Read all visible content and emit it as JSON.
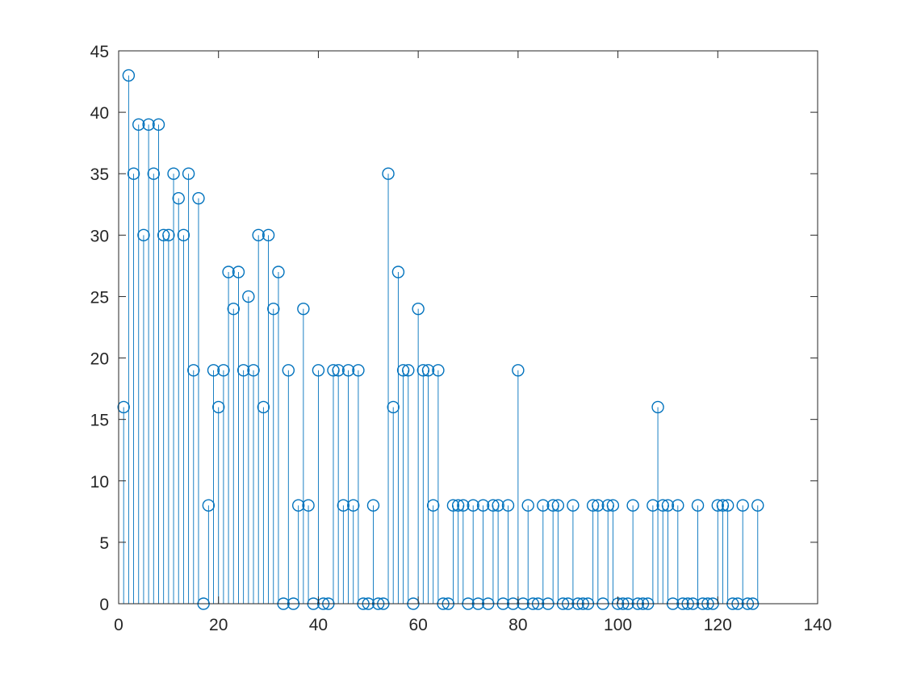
{
  "chart_data": {
    "type": "stem",
    "title": "",
    "xlabel": "",
    "ylabel": "",
    "xlim": [
      0,
      140
    ],
    "ylim": [
      0,
      45
    ],
    "xticks": [
      0,
      20,
      40,
      60,
      80,
      100,
      120,
      140
    ],
    "yticks": [
      0,
      5,
      10,
      15,
      20,
      25,
      30,
      35,
      40,
      45
    ],
    "grid": false,
    "box": true,
    "marker": "circle",
    "color": "#0072BD",
    "x": [
      1,
      2,
      3,
      4,
      5,
      6,
      7,
      8,
      9,
      10,
      11,
      12,
      13,
      14,
      15,
      16,
      17,
      18,
      19,
      20,
      21,
      22,
      23,
      24,
      25,
      26,
      27,
      28,
      29,
      30,
      31,
      32,
      33,
      34,
      35,
      36,
      37,
      38,
      39,
      40,
      41,
      42,
      43,
      44,
      45,
      46,
      47,
      48,
      49,
      50,
      51,
      52,
      53,
      54,
      55,
      56,
      57,
      58,
      59,
      60,
      61,
      62,
      63,
      64,
      65,
      66,
      67,
      68,
      69,
      70,
      71,
      72,
      73,
      74,
      75,
      76,
      77,
      78,
      79,
      80,
      81,
      82,
      83,
      84,
      85,
      86,
      87,
      88,
      89,
      90,
      91,
      92,
      93,
      94,
      95,
      96,
      97,
      98,
      99,
      100,
      101,
      102,
      103,
      104,
      105,
      106,
      107,
      108,
      109,
      110,
      111,
      112,
      113,
      114,
      115,
      116,
      117,
      118,
      119,
      120,
      121,
      122,
      123,
      124,
      125,
      126,
      127,
      128
    ],
    "values": [
      16,
      43,
      35,
      39,
      30,
      39,
      35,
      39,
      30,
      30,
      35,
      33,
      30,
      35,
      19,
      33,
      0,
      8,
      19,
      16,
      19,
      27,
      24,
      27,
      19,
      25,
      19,
      30,
      16,
      30,
      24,
      27,
      0,
      19,
      0,
      8,
      24,
      8,
      0,
      19,
      0,
      0,
      19,
      19,
      8,
      19,
      8,
      19,
      0,
      0,
      8,
      0,
      0,
      35,
      16,
      27,
      19,
      19,
      0,
      24,
      19,
      19,
      8,
      19,
      0,
      0,
      8,
      8,
      8,
      0,
      8,
      0,
      8,
      0,
      8,
      8,
      0,
      8,
      0,
      19,
      0,
      8,
      0,
      0,
      8,
      0,
      8,
      8,
      0,
      0,
      8,
      0,
      0,
      0,
      8,
      8,
      0,
      8,
      8,
      0,
      0,
      0,
      8,
      0,
      0,
      0,
      8,
      16,
      8,
      8,
      0,
      8,
      0,
      0,
      0,
      8,
      0,
      0,
      0,
      8,
      8,
      8,
      0,
      0,
      8,
      0,
      0,
      8
    ]
  }
}
